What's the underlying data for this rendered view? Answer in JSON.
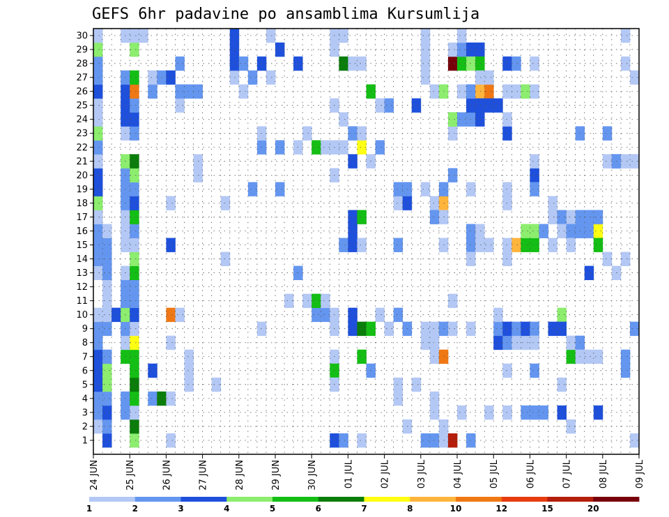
{
  "chart_data": {
    "type": "heatmap",
    "title": "GEFS 6hr padavine po ansamblima Kursumlija",
    "x_tick_labels": [
      "24 JUN",
      "25 JUN",
      "26 JUN",
      "27 JUN",
      "28 JUN",
      "29 JUN",
      "30 JUN",
      "01 JUL",
      "02 JUL",
      "03 JUL",
      "04 JUL",
      "05 JUL",
      "06 JUL",
      "07 JUL",
      "08 JUL",
      "09 JUL"
    ],
    "y_tick_labels": [
      "1",
      "2",
      "3",
      "4",
      "5",
      "6",
      "7",
      "8",
      "9",
      "10",
      "11",
      "12",
      "13",
      "14",
      "15",
      "16",
      "17",
      "18",
      "19",
      "20",
      "21",
      "22",
      "23",
      "24",
      "25",
      "26",
      "27",
      "28",
      "29",
      "30"
    ],
    "steps_per_day": 4,
    "n_steps": 60,
    "n_members": 30,
    "grid": true,
    "colorbar": {
      "levels": [
        "1",
        "2",
        "3",
        "4",
        "5",
        "6",
        "7",
        "8",
        "10",
        "12",
        "15",
        "20"
      ],
      "colors": [
        "#b4c8f5",
        "#6496f0",
        "#1e50dc",
        "#8ced6e",
        "#14be14",
        "#0a7d0a",
        "#ffff14",
        "#ffb43c",
        "#f07814",
        "#e63c0f",
        "#b41e0a",
        "#78000a"
      ]
    },
    "cells": [
      [
        0,
        2,
        1
      ],
      [
        0,
        3,
        2
      ],
      [
        0,
        4,
        2
      ],
      [
        0,
        5,
        3
      ],
      [
        0,
        6,
        3
      ],
      [
        0,
        7,
        3
      ],
      [
        0,
        8,
        2
      ],
      [
        0,
        9,
        2
      ],
      [
        0,
        10,
        1
      ],
      [
        0,
        13,
        1
      ],
      [
        0,
        14,
        2
      ],
      [
        0,
        15,
        2
      ],
      [
        0,
        16,
        2
      ],
      [
        0,
        17,
        1
      ],
      [
        0,
        18,
        4
      ],
      [
        0,
        19,
        3
      ],
      [
        0,
        20,
        3
      ],
      [
        0,
        21,
        1
      ],
      [
        0,
        22,
        2
      ],
      [
        0,
        23,
        4
      ],
      [
        0,
        24,
        1
      ],
      [
        0,
        25,
        1
      ],
      [
        0,
        26,
        3
      ],
      [
        0,
        27,
        2
      ],
      [
        0,
        28,
        2
      ],
      [
        0,
        29,
        4
      ],
      [
        0,
        30,
        1
      ],
      [
        1,
        1,
        3
      ],
      [
        1,
        2,
        2
      ],
      [
        1,
        3,
        3
      ],
      [
        1,
        4,
        2
      ],
      [
        1,
        5,
        4
      ],
      [
        1,
        6,
        4
      ],
      [
        1,
        7,
        2
      ],
      [
        1,
        9,
        2
      ],
      [
        1,
        10,
        1
      ],
      [
        1,
        11,
        1
      ],
      [
        1,
        12,
        1
      ],
      [
        1,
        13,
        2
      ],
      [
        1,
        14,
        2
      ],
      [
        1,
        15,
        2
      ],
      [
        1,
        16,
        1
      ],
      [
        2,
        10,
        3
      ],
      [
        3,
        3,
        2
      ],
      [
        3,
        4,
        2
      ],
      [
        3,
        7,
        5
      ],
      [
        3,
        8,
        1
      ],
      [
        3,
        9,
        2
      ],
      [
        3,
        10,
        4
      ],
      [
        3,
        11,
        2
      ],
      [
        3,
        12,
        2
      ],
      [
        3,
        13,
        1
      ],
      [
        3,
        15,
        1
      ],
      [
        3,
        16,
        1
      ],
      [
        3,
        17,
        1
      ],
      [
        3,
        18,
        2
      ],
      [
        3,
        19,
        2
      ],
      [
        3,
        20,
        2
      ],
      [
        3,
        21,
        4
      ],
      [
        3,
        23,
        1
      ],
      [
        3,
        24,
        3
      ],
      [
        3,
        25,
        3
      ],
      [
        3,
        26,
        3
      ],
      [
        3,
        27,
        2
      ],
      [
        3,
        30,
        1
      ],
      [
        4,
        1,
        4
      ],
      [
        4,
        2,
        6
      ],
      [
        4,
        3,
        1
      ],
      [
        4,
        4,
        5
      ],
      [
        4,
        5,
        6
      ],
      [
        4,
        6,
        5
      ],
      [
        4,
        7,
        5
      ],
      [
        4,
        8,
        7
      ],
      [
        4,
        9,
        1
      ],
      [
        4,
        10,
        3
      ],
      [
        4,
        11,
        2
      ],
      [
        4,
        12,
        2
      ],
      [
        4,
        13,
        5
      ],
      [
        4,
        14,
        4
      ],
      [
        4,
        15,
        1
      ],
      [
        4,
        16,
        2
      ],
      [
        4,
        17,
        5
      ],
      [
        4,
        18,
        3
      ],
      [
        4,
        19,
        2
      ],
      [
        4,
        20,
        4
      ],
      [
        4,
        21,
        6
      ],
      [
        4,
        23,
        2
      ],
      [
        4,
        24,
        3
      ],
      [
        4,
        25,
        2
      ],
      [
        4,
        26,
        9
      ],
      [
        4,
        27,
        5
      ],
      [
        4,
        29,
        4
      ],
      [
        4,
        30,
        1
      ],
      [
        5,
        30,
        1
      ],
      [
        6,
        4,
        2
      ],
      [
        6,
        6,
        3
      ],
      [
        6,
        26,
        2
      ],
      [
        6,
        27,
        1
      ],
      [
        7,
        4,
        6
      ],
      [
        7,
        27,
        2
      ],
      [
        8,
        4,
        1
      ],
      [
        8,
        27,
        3
      ],
      [
        8,
        1,
        1
      ],
      [
        8,
        8,
        1
      ],
      [
        8,
        10,
        9
      ],
      [
        8,
        15,
        3
      ],
      [
        8,
        18,
        1
      ],
      [
        9,
        10,
        1
      ],
      [
        9,
        25,
        1
      ],
      [
        9,
        26,
        2
      ],
      [
        9,
        28,
        2
      ],
      [
        10,
        5,
        1
      ],
      [
        10,
        7,
        1
      ],
      [
        10,
        26,
        2
      ],
      [
        10,
        6,
        1
      ],
      [
        11,
        26,
        2
      ],
      [
        11,
        21,
        1
      ],
      [
        11,
        20,
        1
      ],
      [
        13,
        5,
        1
      ],
      [
        14,
        14,
        1
      ],
      [
        14,
        18,
        1
      ],
      [
        15,
        27,
        1
      ],
      [
        15,
        28,
        3
      ],
      [
        15,
        29,
        3
      ],
      [
        15,
        30,
        3
      ],
      [
        16,
        26,
        1
      ],
      [
        16,
        28,
        2
      ],
      [
        17,
        27,
        2
      ],
      [
        17,
        19,
        2
      ],
      [
        18,
        9,
        1
      ],
      [
        18,
        22,
        2
      ],
      [
        18,
        23,
        1
      ],
      [
        18,
        28,
        3
      ],
      [
        19,
        27,
        1
      ],
      [
        19,
        30,
        1
      ],
      [
        20,
        22,
        2
      ],
      [
        20,
        19,
        2
      ],
      [
        20,
        29,
        3
      ],
      [
        21,
        11,
        1
      ],
      [
        22,
        28,
        3
      ],
      [
        22,
        22,
        1
      ],
      [
        22,
        13,
        2
      ],
      [
        23,
        11,
        1
      ],
      [
        23,
        23,
        1
      ],
      [
        24,
        10,
        2
      ],
      [
        24,
        11,
        5
      ],
      [
        24,
        22,
        5
      ],
      [
        25,
        10,
        2
      ],
      [
        25,
        11,
        1
      ],
      [
        25,
        22,
        1
      ],
      [
        26,
        10,
        1
      ],
      [
        26,
        1,
        3
      ],
      [
        26,
        9,
        1
      ],
      [
        26,
        7,
        1
      ],
      [
        26,
        29,
        1
      ],
      [
        26,
        30,
        1
      ],
      [
        26,
        20,
        1
      ],
      [
        26,
        22,
        1
      ],
      [
        26,
        6,
        5
      ],
      [
        26,
        5,
        1
      ],
      [
        26,
        25,
        1
      ],
      [
        27,
        1,
        2
      ],
      [
        27,
        15,
        2
      ],
      [
        27,
        22,
        1
      ],
      [
        27,
        24,
        1
      ],
      [
        27,
        28,
        6
      ],
      [
        27,
        30,
        1
      ],
      [
        28,
        9,
        3
      ],
      [
        28,
        10,
        3
      ],
      [
        28,
        15,
        3
      ],
      [
        28,
        16,
        3
      ],
      [
        28,
        17,
        3
      ],
      [
        28,
        21,
        3
      ],
      [
        28,
        23,
        2
      ],
      [
        28,
        28,
        1
      ],
      [
        29,
        7,
        5
      ],
      [
        29,
        9,
        6
      ],
      [
        29,
        28,
        1
      ],
      [
        29,
        15,
        1
      ],
      [
        29,
        1,
        1
      ],
      [
        29,
        17,
        5
      ],
      [
        29,
        22,
        7
      ],
      [
        29,
        23,
        1
      ],
      [
        30,
        6,
        2
      ],
      [
        30,
        9,
        5
      ],
      [
        30,
        21,
        1
      ],
      [
        30,
        26,
        5
      ],
      [
        31,
        10,
        1
      ],
      [
        31,
        22,
        2
      ],
      [
        31,
        25,
        1
      ],
      [
        32,
        25,
        2
      ],
      [
        32,
        9,
        1
      ],
      [
        33,
        4,
        1
      ],
      [
        33,
        5,
        1
      ],
      [
        33,
        15,
        2
      ],
      [
        33,
        18,
        1
      ],
      [
        33,
        19,
        2
      ],
      [
        33,
        10,
        2
      ],
      [
        34,
        9,
        2
      ],
      [
        34,
        18,
        3
      ],
      [
        34,
        19,
        2
      ],
      [
        34,
        2,
        1
      ],
      [
        35,
        5,
        1
      ],
      [
        35,
        25,
        3
      ],
      [
        36,
        1,
        2
      ],
      [
        36,
        8,
        1
      ],
      [
        36,
        9,
        1
      ],
      [
        36,
        19,
        1
      ],
      [
        36,
        27,
        1
      ],
      [
        36,
        28,
        1
      ],
      [
        36,
        29,
        1
      ],
      [
        36,
        30,
        1
      ],
      [
        37,
        1,
        2
      ],
      [
        37,
        7,
        1
      ],
      [
        37,
        18,
        1
      ],
      [
        37,
        26,
        1
      ],
      [
        37,
        17,
        2
      ],
      [
        37,
        8,
        1
      ],
      [
        37,
        3,
        1
      ],
      [
        37,
        4,
        1
      ],
      [
        37,
        9,
        1
      ],
      [
        38,
        9,
        2
      ],
      [
        38,
        18,
        8
      ],
      [
        38,
        19,
        2
      ],
      [
        38,
        26,
        4
      ],
      [
        38,
        7,
        9
      ],
      [
        38,
        15,
        1
      ],
      [
        38,
        17,
        1
      ],
      [
        38,
        1,
        1
      ],
      [
        38,
        2,
        1
      ],
      [
        39,
        28,
        12
      ],
      [
        39,
        1,
        11
      ],
      [
        39,
        20,
        2
      ],
      [
        39,
        9,
        1
      ],
      [
        39,
        23,
        1
      ],
      [
        39,
        24,
        4
      ],
      [
        39,
        11,
        1
      ],
      [
        39,
        24,
        4
      ],
      [
        39,
        29,
        1
      ],
      [
        40,
        24,
        2
      ],
      [
        40,
        28,
        5
      ],
      [
        40,
        29,
        2
      ],
      [
        40,
        30,
        1
      ],
      [
        40,
        26,
        1
      ],
      [
        40,
        3,
        1
      ],
      [
        41,
        24,
        2
      ],
      [
        41,
        29,
        3
      ],
      [
        41,
        28,
        4
      ],
      [
        41,
        26,
        2
      ],
      [
        41,
        25,
        3
      ],
      [
        41,
        15,
        2
      ],
      [
        41,
        19,
        1
      ],
      [
        41,
        14,
        1
      ],
      [
        41,
        9,
        1
      ],
      [
        41,
        1,
        2
      ],
      [
        41,
        16,
        2
      ],
      [
        41,
        26,
        2
      ],
      [
        42,
        24,
        3
      ],
      [
        42,
        29,
        3
      ],
      [
        42,
        28,
        5
      ],
      [
        42,
        26,
        8
      ],
      [
        42,
        25,
        3
      ],
      [
        42,
        27,
        1
      ],
      [
        42,
        16,
        1
      ],
      [
        42,
        15,
        1
      ],
      [
        43,
        26,
        9
      ],
      [
        43,
        25,
        3
      ],
      [
        43,
        27,
        1
      ],
      [
        43,
        15,
        1
      ],
      [
        43,
        3,
        1
      ],
      [
        44,
        8,
        3
      ],
      [
        44,
        25,
        3
      ],
      [
        44,
        9,
        2
      ],
      [
        44,
        10,
        1
      ],
      [
        45,
        8,
        2
      ],
      [
        45,
        9,
        3
      ],
      [
        45,
        28,
        3
      ],
      [
        45,
        18,
        1
      ],
      [
        45,
        23,
        3
      ],
      [
        45,
        24,
        1
      ],
      [
        45,
        3,
        1
      ],
      [
        45,
        15,
        1
      ],
      [
        45,
        6,
        1
      ],
      [
        45,
        19,
        1
      ],
      [
        45,
        26,
        1
      ],
      [
        45,
        14,
        1
      ],
      [
        46,
        28,
        2
      ],
      [
        46,
        8,
        1
      ],
      [
        46,
        9,
        2
      ],
      [
        46,
        26,
        1
      ],
      [
        46,
        15,
        8
      ],
      [
        47,
        8,
        1
      ],
      [
        47,
        9,
        3
      ],
      [
        47,
        15,
        5
      ],
      [
        47,
        16,
        4
      ],
      [
        47,
        3,
        2
      ],
      [
        47,
        26,
        4
      ],
      [
        48,
        28,
        1
      ],
      [
        48,
        9,
        2
      ],
      [
        48,
        15,
        5
      ],
      [
        48,
        16,
        4
      ],
      [
        48,
        26,
        1
      ],
      [
        48,
        20,
        3
      ],
      [
        48,
        19,
        2
      ],
      [
        48,
        21,
        1
      ],
      [
        48,
        6,
        2
      ],
      [
        48,
        3,
        2
      ],
      [
        48,
        8,
        1
      ],
      [
        49,
        16,
        2
      ],
      [
        49,
        3,
        2
      ],
      [
        50,
        17,
        1
      ],
      [
        50,
        18,
        1
      ],
      [
        50,
        9,
        3
      ],
      [
        50,
        15,
        1
      ],
      [
        51,
        10,
        4
      ],
      [
        51,
        9,
        3
      ],
      [
        51,
        3,
        3
      ],
      [
        51,
        5,
        1
      ],
      [
        51,
        17,
        2
      ],
      [
        51,
        16,
        1
      ],
      [
        52,
        17,
        1
      ],
      [
        52,
        16,
        2
      ],
      [
        52,
        15,
        1
      ],
      [
        52,
        7,
        5
      ],
      [
        52,
        8,
        1
      ],
      [
        52,
        2,
        1
      ],
      [
        53,
        23,
        2
      ],
      [
        53,
        16,
        2
      ],
      [
        53,
        17,
        2
      ],
      [
        53,
        8,
        2
      ],
      [
        53,
        7,
        1
      ],
      [
        54,
        16,
        2
      ],
      [
        54,
        17,
        2
      ],
      [
        54,
        7,
        1
      ],
      [
        54,
        13,
        3
      ],
      [
        55,
        3,
        3
      ],
      [
        55,
        16,
        7
      ],
      [
        55,
        15,
        5
      ],
      [
        55,
        17,
        2
      ],
      [
        55,
        7,
        1
      ],
      [
        56,
        23,
        2
      ],
      [
        56,
        21,
        1
      ],
      [
        56,
        14,
        1
      ],
      [
        57,
        13,
        1
      ],
      [
        57,
        21,
        2
      ],
      [
        57,
        21,
        2
      ],
      [
        58,
        21,
        1
      ],
      [
        58,
        28,
        1
      ],
      [
        58,
        30,
        1
      ],
      [
        58,
        14,
        1
      ],
      [
        58,
        7,
        2
      ],
      [
        58,
        6,
        2
      ],
      [
        59,
        21,
        1
      ],
      [
        59,
        27,
        1
      ],
      [
        59,
        21,
        1
      ],
      [
        59,
        1,
        1
      ],
      [
        59,
        9,
        2
      ],
      [
        60,
        21,
        4
      ],
      [
        60,
        20,
        1
      ],
      [
        60,
        9,
        2
      ],
      [
        60,
        7,
        3
      ],
      [
        60,
        6,
        2
      ],
      [
        60,
        0,
        3
      ]
    ]
  }
}
